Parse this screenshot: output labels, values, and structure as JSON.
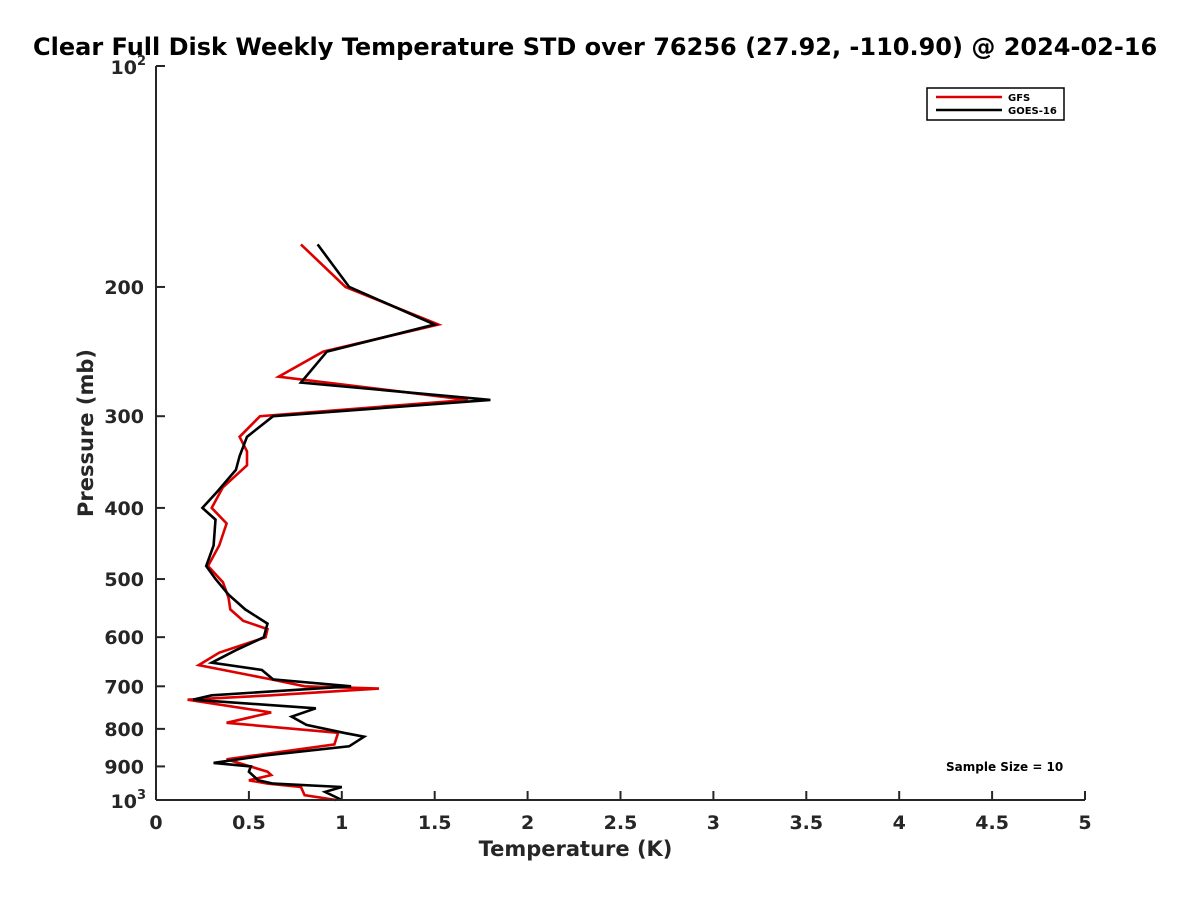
{
  "chart_data": {
    "type": "line",
    "title": "Clear Full Disk Weekly Temperature STD over 76256 (27.92, -110.90) @ 2024-02-16",
    "xlabel": "Temperature (K)",
    "ylabel": "Pressure (mb)",
    "xlim": [
      0,
      5
    ],
    "ylim": [
      1000,
      100
    ],
    "yscale": "log",
    "xticks": [
      0,
      0.5,
      1,
      1.5,
      2,
      2.5,
      3,
      3.5,
      4,
      4.5,
      5
    ],
    "xtick_labels": [
      "0",
      "0.5",
      "1",
      "1.5",
      "2",
      "2.5",
      "3",
      "3.5",
      "4",
      "4.5",
      "5"
    ],
    "yticks": [
      {
        "value": 100,
        "base": "10",
        "exp": "2"
      },
      {
        "value": 200,
        "label": "200"
      },
      {
        "value": 300,
        "label": "300"
      },
      {
        "value": 400,
        "label": "400"
      },
      {
        "value": 500,
        "label": "500"
      },
      {
        "value": 600,
        "label": "600"
      },
      {
        "value": 700,
        "label": "700"
      },
      {
        "value": 800,
        "label": "800"
      },
      {
        "value": 900,
        "label": "900"
      },
      {
        "value": 1000,
        "base": "10",
        "exp": "3"
      }
    ],
    "legend": {
      "position": "top-right"
    },
    "annotation": "Sample Size = 10",
    "series": [
      {
        "name": "GFS",
        "color": "#dd0000",
        "points": [
          [
            0.78,
            175
          ],
          [
            1.02,
            200
          ],
          [
            1.52,
            225
          ],
          [
            0.9,
            245
          ],
          [
            0.66,
            265
          ],
          [
            1.68,
            285
          ],
          [
            0.56,
            300
          ],
          [
            0.45,
            320
          ],
          [
            0.49,
            335
          ],
          [
            0.49,
            350
          ],
          [
            0.36,
            375
          ],
          [
            0.3,
            400
          ],
          [
            0.38,
            420
          ],
          [
            0.34,
            450
          ],
          [
            0.28,
            480
          ],
          [
            0.36,
            505
          ],
          [
            0.39,
            530
          ],
          [
            0.4,
            550
          ],
          [
            0.47,
            570
          ],
          [
            0.6,
            585
          ],
          [
            0.59,
            600
          ],
          [
            0.34,
            630
          ],
          [
            0.23,
            655
          ],
          [
            0.62,
            685
          ],
          [
            0.8,
            700
          ],
          [
            1.2,
            705
          ],
          [
            0.62,
            720
          ],
          [
            0.17,
            730
          ],
          [
            0.62,
            760
          ],
          [
            0.38,
            785
          ],
          [
            0.98,
            810
          ],
          [
            0.96,
            840
          ],
          [
            0.38,
            880
          ],
          [
            0.6,
            915
          ],
          [
            0.62,
            925
          ],
          [
            0.5,
            940
          ],
          [
            0.6,
            950
          ],
          [
            0.78,
            960
          ],
          [
            0.8,
            985
          ],
          [
            0.97,
            1000
          ]
        ]
      },
      {
        "name": "GOES-16",
        "color": "#000000",
        "points": [
          [
            0.87,
            175
          ],
          [
            1.04,
            200
          ],
          [
            1.5,
            225
          ],
          [
            0.92,
            245
          ],
          [
            0.78,
            270
          ],
          [
            1.8,
            285
          ],
          [
            0.63,
            300
          ],
          [
            0.49,
            320
          ],
          [
            0.45,
            340
          ],
          [
            0.43,
            355
          ],
          [
            0.33,
            380
          ],
          [
            0.25,
            400
          ],
          [
            0.32,
            415
          ],
          [
            0.31,
            450
          ],
          [
            0.27,
            480
          ],
          [
            0.32,
            500
          ],
          [
            0.39,
            525
          ],
          [
            0.48,
            550
          ],
          [
            0.6,
            575
          ],
          [
            0.58,
            600
          ],
          [
            0.43,
            625
          ],
          [
            0.3,
            650
          ],
          [
            0.57,
            665
          ],
          [
            0.63,
            685
          ],
          [
            1.05,
            700
          ],
          [
            0.3,
            720
          ],
          [
            0.2,
            730
          ],
          [
            0.86,
            750
          ],
          [
            0.73,
            770
          ],
          [
            0.81,
            790
          ],
          [
            1.01,
            810
          ],
          [
            1.12,
            820
          ],
          [
            1.04,
            845
          ],
          [
            0.58,
            870
          ],
          [
            0.31,
            890
          ],
          [
            0.51,
            900
          ],
          [
            0.5,
            915
          ],
          [
            0.55,
            940
          ],
          [
            0.63,
            950
          ],
          [
            1.0,
            960
          ],
          [
            0.91,
            975
          ],
          [
            1.0,
            1000
          ]
        ]
      }
    ]
  }
}
